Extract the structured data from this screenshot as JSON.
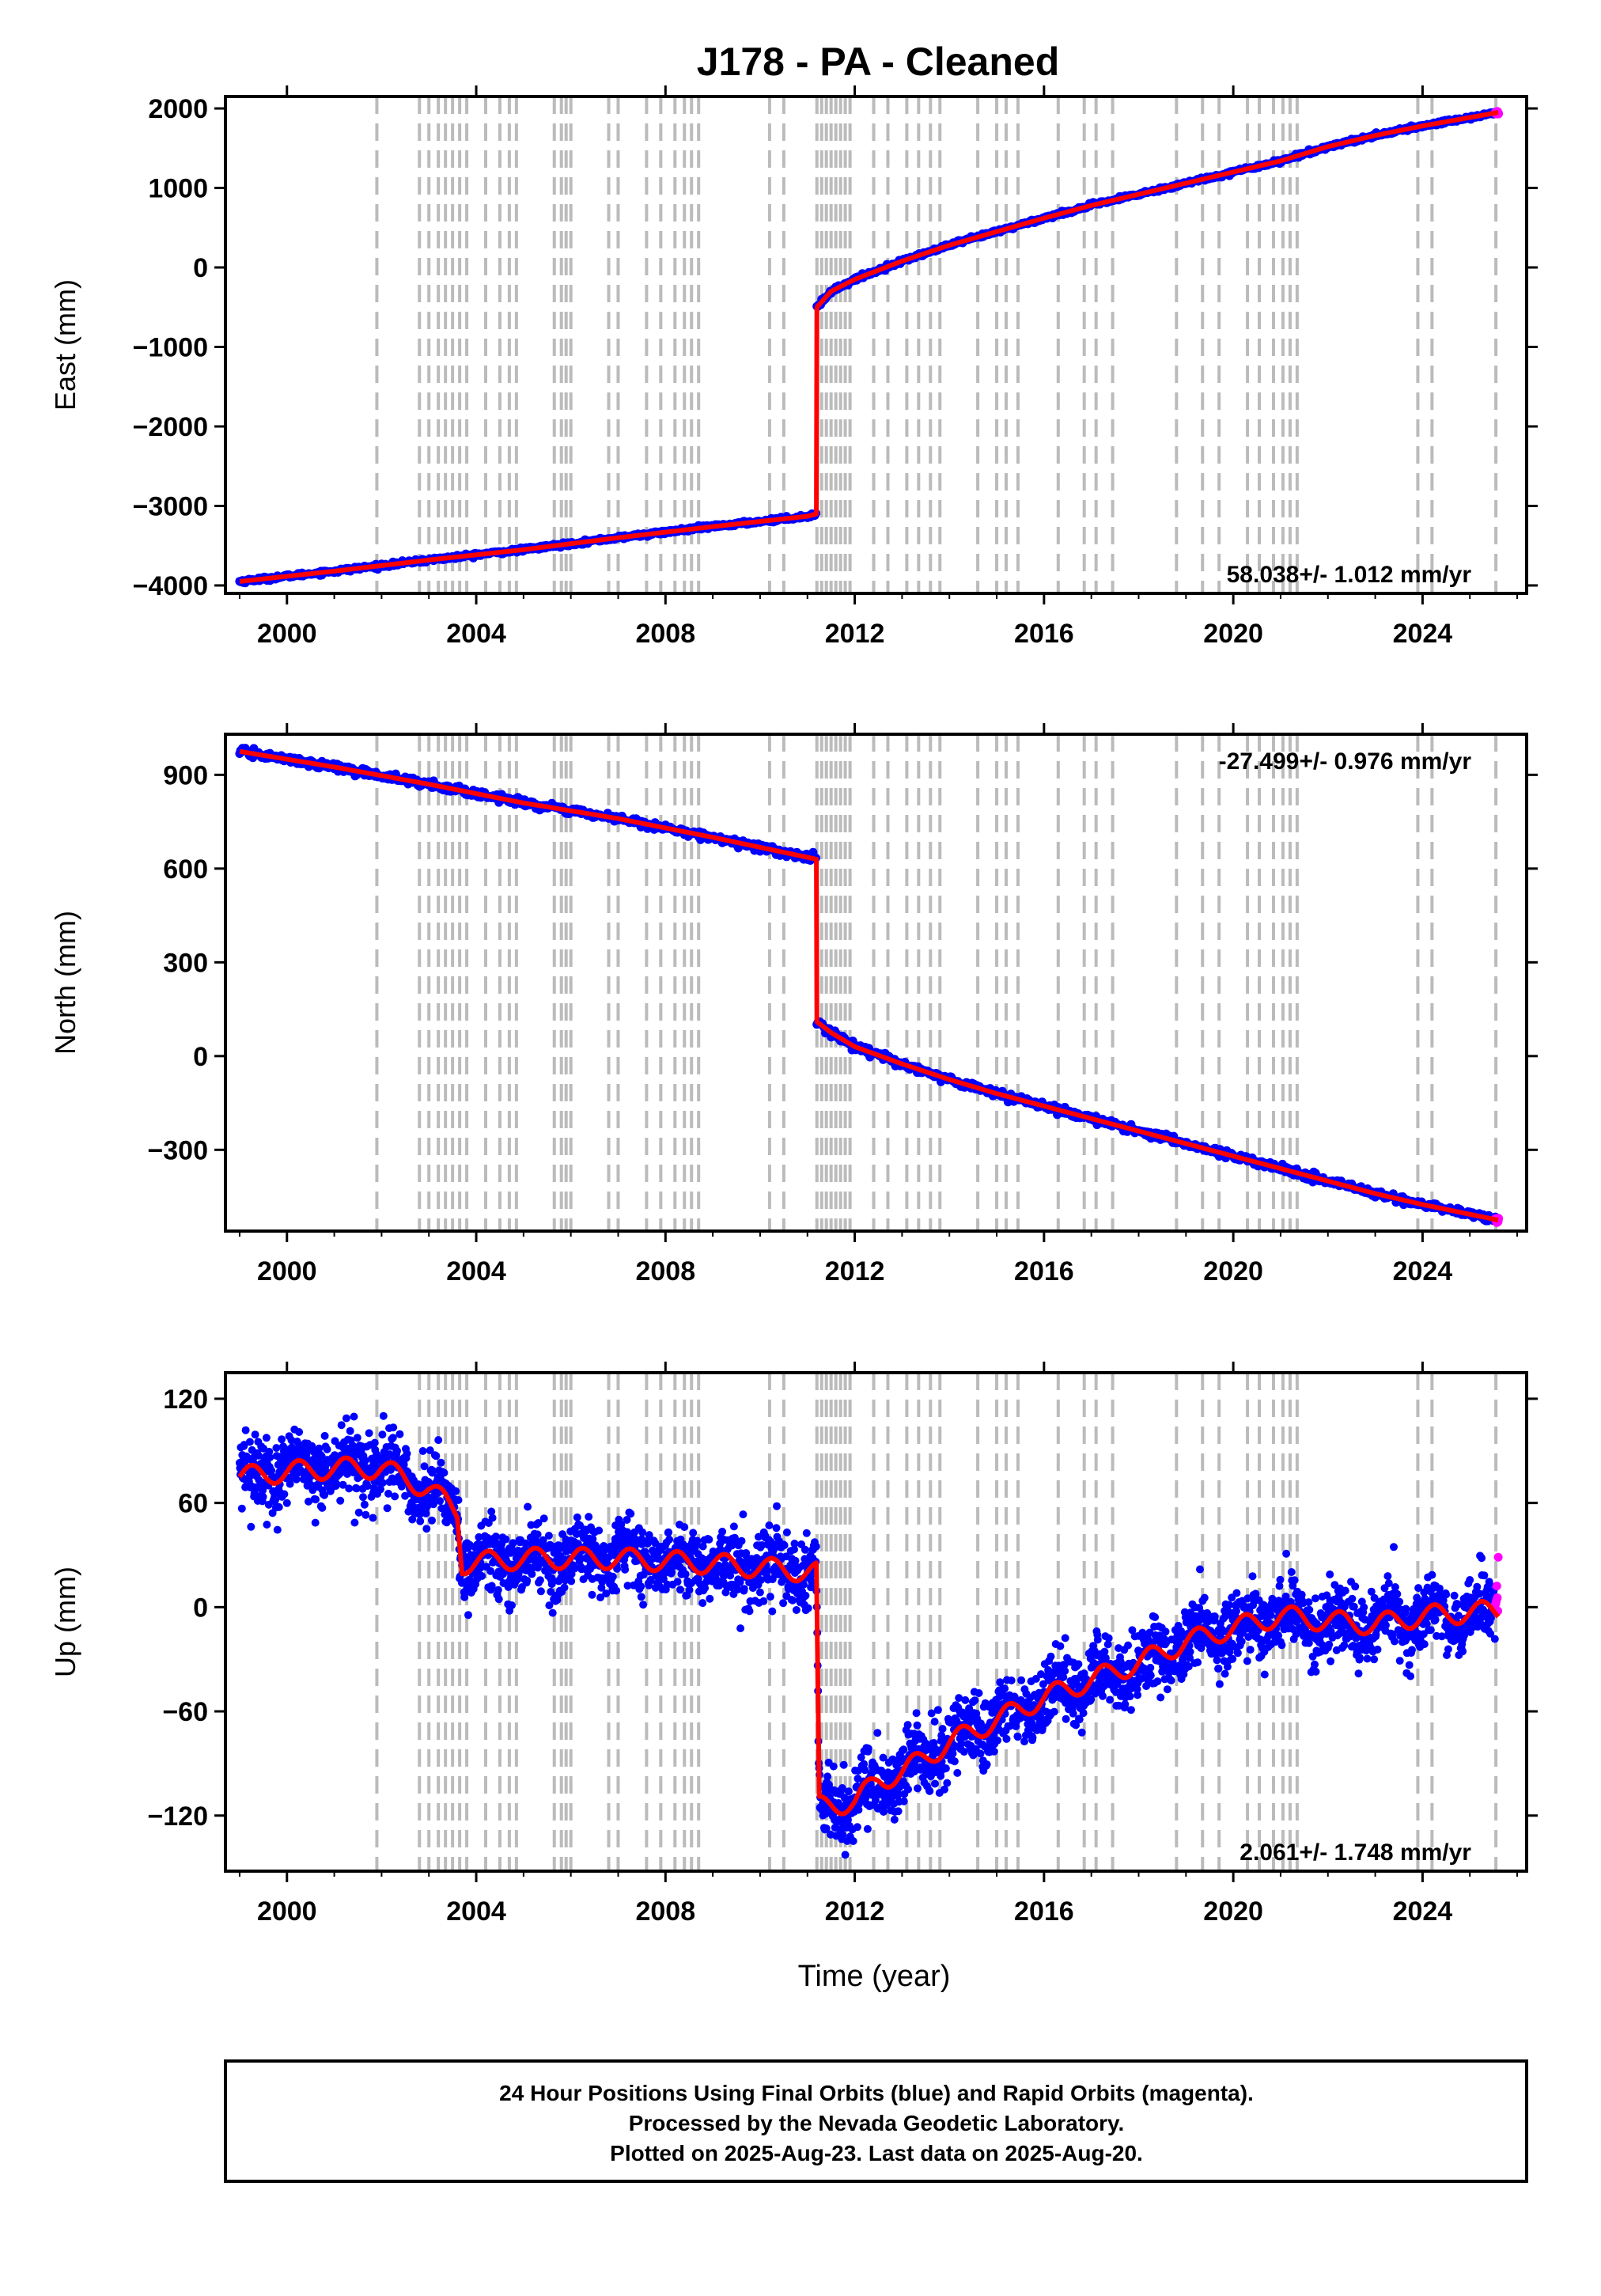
{
  "title": "J178  - PA - Cleaned",
  "xlabel": "Time (year)",
  "footer": [
    "24 Hour Positions Using Final Orbits (blue) and Rapid Orbits (magenta).",
    "Processed by the Nevada Geodetic Laboratory.",
    "Plotted on 2025-Aug-23. Last data on 2025-Aug-20."
  ],
  "colors": {
    "final": "#0000ff",
    "rapid": "#ff00ff",
    "model": "#ff0000",
    "event_lines": "#bbbbbb"
  },
  "chart_data": [
    {
      "type": "scatter",
      "component": "east",
      "ylabel": "East (mm)",
      "rate": "58.038+/- 1.012 mm/yr",
      "xlim": [
        1998.7,
        2026.2
      ],
      "ylim": [
        -4100,
        2150
      ],
      "yticks": [
        2000,
        1000,
        0,
        -1000,
        -2000,
        -3000,
        -4000
      ],
      "xticks": [
        2000,
        2004,
        2008,
        2012,
        2016,
        2020,
        2024
      ],
      "grid": false,
      "trend": [
        [
          1999.0,
          -3950
        ],
        [
          2001.0,
          -3820
        ],
        [
          2003.0,
          -3680
        ],
        [
          2005.0,
          -3550
        ],
        [
          2007.0,
          -3400
        ],
        [
          2009.0,
          -3260
        ],
        [
          2011.0,
          -3130
        ],
        [
          2011.19,
          -3100
        ],
        [
          2011.2,
          -500
        ],
        [
          2011.5,
          -300
        ],
        [
          2012.0,
          -150
        ],
        [
          2013.0,
          80
        ],
        [
          2014.0,
          280
        ],
        [
          2015.0,
          450
        ],
        [
          2016.0,
          620
        ],
        [
          2017.0,
          780
        ],
        [
          2018.0,
          920
        ],
        [
          2019.0,
          1060
        ],
        [
          2020.0,
          1200
        ],
        [
          2021.0,
          1340
        ],
        [
          2022.0,
          1520
        ],
        [
          2023.0,
          1660
        ],
        [
          2024.0,
          1780
        ],
        [
          2025.6,
          1950
        ]
      ],
      "scatter_sd": 12,
      "seasonal_amp": 0
    },
    {
      "type": "scatter",
      "component": "north",
      "ylabel": "North (mm)",
      "rate": "-27.499+/- 0.976 mm/yr",
      "xlim": [
        1998.7,
        2026.2
      ],
      "ylim": [
        -560,
        1030
      ],
      "yticks": [
        900,
        600,
        300,
        0,
        -300
      ],
      "xticks": [
        2000,
        2004,
        2008,
        2012,
        2016,
        2020,
        2024
      ],
      "grid": false,
      "trend": [
        [
          1999.0,
          975
        ],
        [
          2001.0,
          925
        ],
        [
          2003.0,
          870
        ],
        [
          2005.0,
          810
        ],
        [
          2007.0,
          760
        ],
        [
          2009.0,
          700
        ],
        [
          2011.19,
          630
        ],
        [
          2011.2,
          110
        ],
        [
          2011.5,
          75
        ],
        [
          2012.0,
          30
        ],
        [
          2013.0,
          -25
        ],
        [
          2014.0,
          -75
        ],
        [
          2015.0,
          -120
        ],
        [
          2016.0,
          -160
        ],
        [
          2017.0,
          -200
        ],
        [
          2018.0,
          -240
        ],
        [
          2019.0,
          -280
        ],
        [
          2020.0,
          -320
        ],
        [
          2021.0,
          -360
        ],
        [
          2022.0,
          -400
        ],
        [
          2023.0,
          -440
        ],
        [
          2024.0,
          -475
        ],
        [
          2025.6,
          -525
        ]
      ],
      "scatter_sd": 6,
      "seasonal_amp": 0
    },
    {
      "type": "scatter",
      "component": "up",
      "ylabel": "Up (mm)",
      "rate": "2.061+/- 1.748 mm/yr",
      "xlim": [
        1998.7,
        2026.2
      ],
      "ylim": [
        -152,
        135
      ],
      "yticks": [
        120,
        60,
        0,
        -60,
        -120
      ],
      "xticks": [
        2000,
        2004,
        2008,
        2012,
        2016,
        2020,
        2024
      ],
      "grid": false,
      "trend": [
        [
          1999.0,
          75
        ],
        [
          2000.0,
          78
        ],
        [
          2001.0,
          80
        ],
        [
          2002.0,
          80
        ],
        [
          2003.0,
          68
        ],
        [
          2003.6,
          55
        ],
        [
          2003.7,
          25
        ],
        [
          2005.0,
          28
        ],
        [
          2007.0,
          28
        ],
        [
          2009.0,
          25
        ],
        [
          2011.19,
          20
        ],
        [
          2011.25,
          -115
        ],
        [
          2012.0,
          -112
        ],
        [
          2012.5,
          -100
        ],
        [
          2013.0,
          -95
        ],
        [
          2014.0,
          -78
        ],
        [
          2015.0,
          -65
        ],
        [
          2016.0,
          -52
        ],
        [
          2017.0,
          -42
        ],
        [
          2018.0,
          -32
        ],
        [
          2019.0,
          -20
        ],
        [
          2020.0,
          -12
        ],
        [
          2021.0,
          -5
        ],
        [
          2022.0,
          -8
        ],
        [
          2023.0,
          -10
        ],
        [
          2024.0,
          -5
        ],
        [
          2025.6,
          -2
        ]
      ],
      "scatter_sd": 10,
      "seasonal_amp": 6
    }
  ],
  "event_lines": [
    2001.9,
    2002.8,
    2003.0,
    2003.2,
    2003.35,
    2003.5,
    2003.65,
    2003.8,
    2004.2,
    2004.5,
    2004.7,
    2004.85,
    2005.65,
    2005.8,
    2005.9,
    2006.0,
    2006.8,
    2007.0,
    2007.6,
    2007.9,
    2008.2,
    2008.4,
    2008.55,
    2008.7,
    2010.2,
    2010.5,
    2011.2,
    2011.3,
    2011.4,
    2011.5,
    2011.6,
    2011.7,
    2011.8,
    2011.9,
    2012.4,
    2012.7,
    2013.1,
    2013.35,
    2013.6,
    2013.8,
    2014.6,
    2015.0,
    2015.2,
    2015.45,
    2016.3,
    2016.85,
    2017.1,
    2017.45,
    2018.8,
    2019.35,
    2019.7,
    2020.3,
    2020.55,
    2020.85,
    2021.05,
    2021.2,
    2021.35,
    2023.9,
    2024.2,
    2025.55
  ]
}
